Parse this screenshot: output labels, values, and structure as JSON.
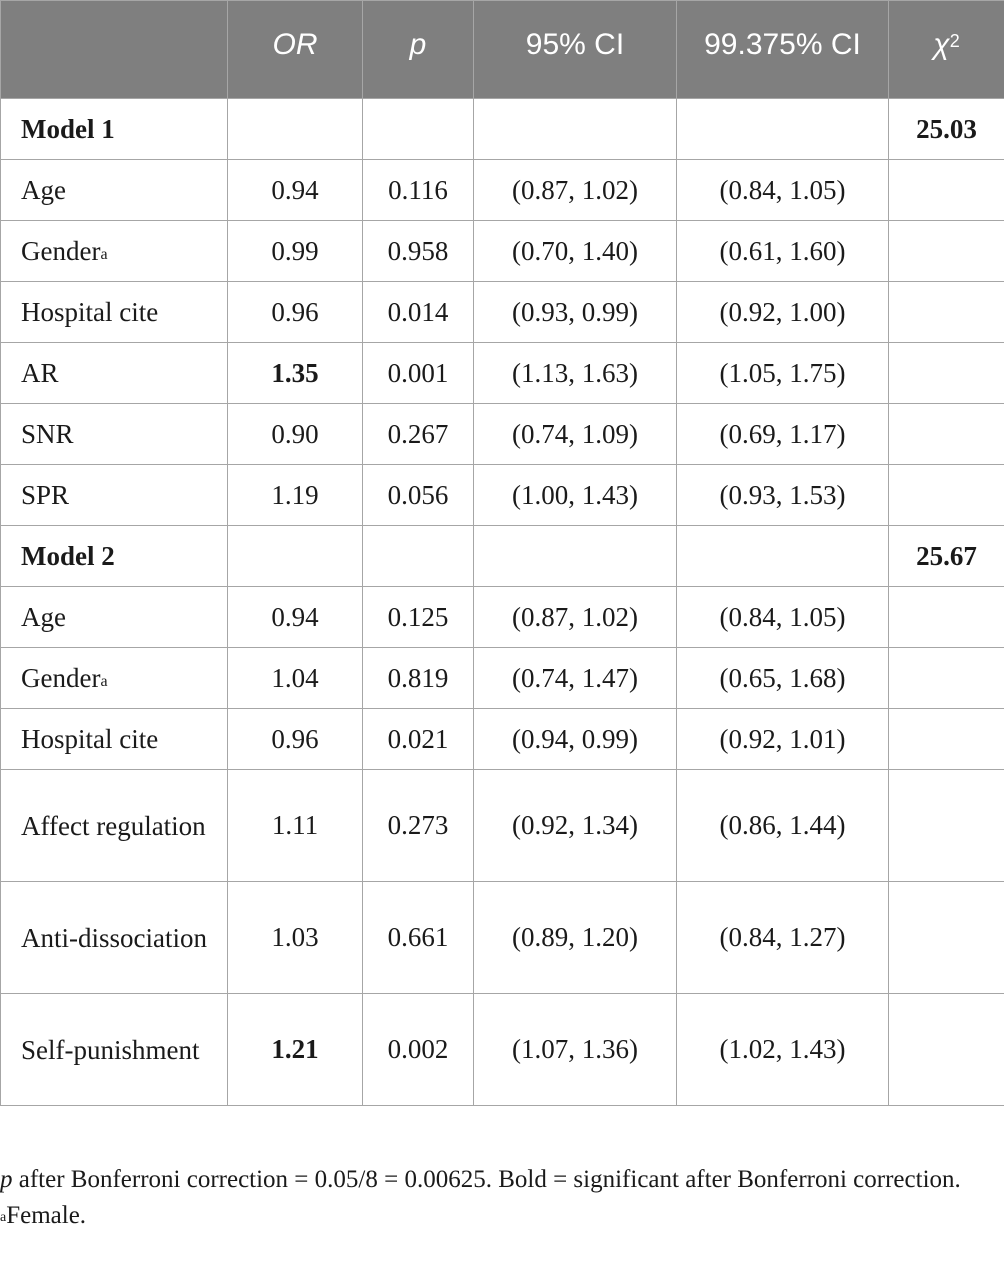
{
  "table": {
    "headers": [
      "",
      "OR",
      "p",
      "95% CI",
      "99.375% CI",
      "χ",
      "2"
    ],
    "model1": {
      "label": "Model 1",
      "chi2": "25.03"
    },
    "model1_rows": [
      {
        "label": "Age",
        "sup": "",
        "or": "0.94",
        "p": "0.116",
        "ci95": "(0.87, 1.02)",
        "ci99": "(0.84, 1.05)"
      },
      {
        "label": "Gender",
        "sup": "a",
        "or": "0.99",
        "p": "0.958",
        "ci95": "(0.70, 1.40)",
        "ci99": "(0.61, 1.60)"
      },
      {
        "label": "Hospital cite",
        "sup": "",
        "or": "0.96",
        "p": "0.014",
        "ci95": "(0.93, 0.99)",
        "ci99": "(0.92, 1.00)"
      },
      {
        "label": "AR",
        "sup": "",
        "or": "1.35",
        "p": "0.001",
        "ci95": "(1.13, 1.63)",
        "ci99": "(1.05, 1.75)"
      },
      {
        "label": "SNR",
        "sup": "",
        "or": "0.90",
        "p": "0.267",
        "ci95": "(0.74, 1.09)",
        "ci99": "(0.69, 1.17)"
      },
      {
        "label": "SPR",
        "sup": "",
        "or": "1.19",
        "p": "0.056",
        "ci95": "(1.00, 1.43)",
        "ci99": "(0.93, 1.53)"
      }
    ],
    "model2": {
      "label": "Model 2",
      "chi2": "25.67"
    },
    "model2_rows": [
      {
        "label": "Age",
        "sup": "",
        "or": "0.94",
        "p": "0.125",
        "ci95": "(0.87, 1.02)",
        "ci99": "(0.84, 1.05)"
      },
      {
        "label": "Gender",
        "sup": "a",
        "or": "1.04",
        "p": "0.819",
        "ci95": "(0.74, 1.47)",
        "ci99": "(0.65, 1.68)"
      },
      {
        "label": "Hospital cite",
        "sup": "",
        "or": "0.96",
        "p": "0.021",
        "ci95": "(0.94, 0.99)",
        "ci99": "(0.92, 1.01)"
      },
      {
        "label": "Affect regulation",
        "sup": "",
        "or": "1.11",
        "p": "0.273",
        "ci95": "(0.92, 1.34)",
        "ci99": "(0.86, 1.44)"
      },
      {
        "label": "Anti-dissociation",
        "sup": "",
        "or": "1.03",
        "p": "0.661",
        "ci95": "(0.89, 1.20)",
        "ci99": "(0.84, 1.27)"
      },
      {
        "label": "Self-punishment",
        "sup": "",
        "or": "1.21",
        "p": "0.002",
        "ci95": "(1.07, 1.36)",
        "ci99": "(1.02, 1.43)"
      }
    ]
  },
  "notes": {
    "line1_p": "p",
    "line1_rest": " after Bonferroni correction = 0.05/8 = 0.00625. Bold = significant after Bonferroni correction.",
    "line2_sup": "a",
    "line2_text": "Female."
  }
}
